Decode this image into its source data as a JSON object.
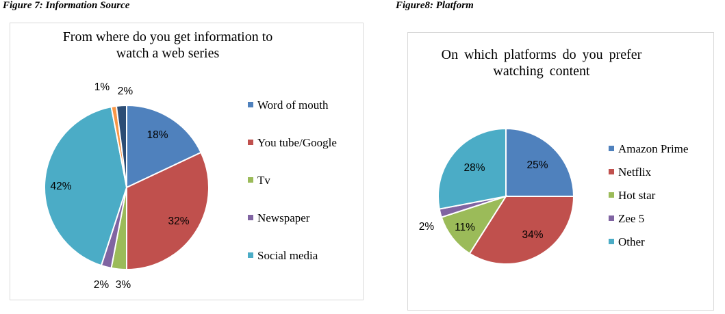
{
  "figure1": {
    "caption": "Figure 7: Information Source"
  },
  "figure2": {
    "caption": "Figure8: Platform"
  },
  "chart_data": [
    {
      "type": "pie",
      "title": "From where do you get information to\nwatch a web series",
      "categories": [
        "Word of mouth",
        "You tube/Google",
        "Tv",
        "Newspaper",
        "Social media",
        "",
        ""
      ],
      "values": [
        18,
        32,
        3,
        2,
        42,
        1,
        2
      ],
      "labels": [
        "18%",
        "32%",
        "3%",
        "2%",
        "42%",
        "1%",
        "2%"
      ],
      "colors": [
        "#4F81BD",
        "#C0504D",
        "#9BBB59",
        "#8064A2",
        "#4BACC6",
        "#F79646",
        "#2C4D75"
      ],
      "legend": [
        "Word of mouth",
        "You tube/Google",
        "Tv",
        "Newspaper",
        "Social media"
      ],
      "legend_position": "right"
    },
    {
      "type": "pie",
      "title": "On which platforms do you prefer\nwatching content",
      "categories": [
        "Amazon Prime",
        "Netflix",
        "Hot star",
        "Zee 5",
        "Other"
      ],
      "values": [
        25,
        34,
        11,
        2,
        28
      ],
      "labels": [
        "25%",
        "34%",
        "11%",
        "2%",
        "28%"
      ],
      "colors": [
        "#4F81BD",
        "#C0504D",
        "#9BBB59",
        "#8064A2",
        "#4BACC6"
      ],
      "legend": [
        "Amazon Prime",
        "Netflix",
        "Hot star",
        "Zee 5",
        "Other"
      ],
      "legend_position": "right"
    }
  ]
}
